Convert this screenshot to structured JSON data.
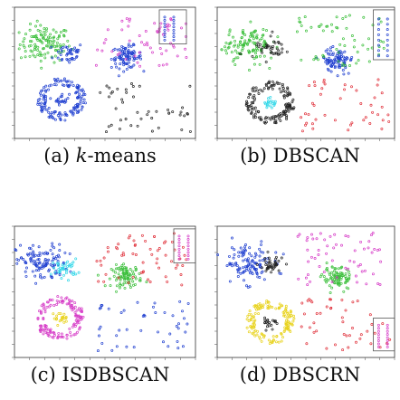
{
  "captions": [
    {
      "tag": "(a)",
      "prefix": " ",
      "emph": "k",
      "rest": "-means"
    },
    {
      "tag": "(b)",
      "prefix": " ",
      "emph": "",
      "rest": "DBSCAN"
    },
    {
      "tag": "(c)",
      "prefix": " ",
      "emph": "",
      "rest": "ISDBSCAN"
    },
    {
      "tag": "(d)",
      "prefix": " ",
      "emph": "",
      "rest": "DBSCRN"
    }
  ],
  "colors": {
    "blue": "#1f3fd0",
    "green": "#3bbf3b",
    "red": "#e0303a",
    "magenta": "#d63cc7",
    "yellow": "#e8d21a",
    "cyan": "#2fd7e8",
    "black": "#222222"
  },
  "chart_data": [
    {
      "type": "scatter",
      "title": "(a) k-means",
      "xlabel": "",
      "ylabel": "",
      "grid": false,
      "clusters": [
        {
          "shape": "blob",
          "cx": 0.17,
          "cy": 0.72,
          "spread": 0.1,
          "n": 120,
          "color": "green"
        },
        {
          "shape": "blob",
          "cx": 0.3,
          "cy": 0.65,
          "spread": 0.06,
          "n": 40,
          "color": "blue"
        },
        {
          "shape": "ring",
          "cx": 0.26,
          "cy": 0.3,
          "r": 0.12,
          "n": 140,
          "color": "blue"
        },
        {
          "shape": "blob",
          "cx": 0.26,
          "cy": 0.3,
          "spread": 0.03,
          "n": 20,
          "color": "blue"
        },
        {
          "shape": "blob",
          "cx": 0.62,
          "cy": 0.62,
          "spread": 0.06,
          "n": 90,
          "color": "blue"
        },
        {
          "shape": "scatter",
          "x": [
            0.45,
            0.95
          ],
          "y": [
            0.55,
            0.95
          ],
          "n": 60,
          "color": "magenta"
        },
        {
          "shape": "scatter",
          "x": [
            0.45,
            0.98
          ],
          "y": [
            0.05,
            0.45
          ],
          "n": 45,
          "color": "black"
        },
        {
          "shape": "box",
          "x": [
            0.8,
            0.95
          ],
          "y": [
            0.72,
            0.98
          ],
          "color": "blue"
        }
      ]
    },
    {
      "type": "scatter",
      "title": "(b) DBSCAN",
      "xlabel": "",
      "ylabel": "",
      "grid": false,
      "clusters": [
        {
          "shape": "blob",
          "cx": 0.17,
          "cy": 0.72,
          "spread": 0.1,
          "n": 120,
          "color": "green"
        },
        {
          "shape": "blob",
          "cx": 0.3,
          "cy": 0.68,
          "spread": 0.06,
          "n": 40,
          "color": "black"
        },
        {
          "shape": "ring",
          "cx": 0.3,
          "cy": 0.27,
          "r": 0.12,
          "n": 140,
          "color": "black"
        },
        {
          "shape": "blob",
          "cx": 0.3,
          "cy": 0.27,
          "spread": 0.03,
          "n": 20,
          "color": "cyan"
        },
        {
          "shape": "blob",
          "cx": 0.68,
          "cy": 0.6,
          "spread": 0.06,
          "n": 90,
          "color": "blue"
        },
        {
          "shape": "scatter",
          "x": [
            0.45,
            0.95
          ],
          "y": [
            0.55,
            0.95
          ],
          "n": 60,
          "color": "green"
        },
        {
          "shape": "scatter",
          "x": [
            0.45,
            0.98
          ],
          "y": [
            0.05,
            0.45
          ],
          "n": 45,
          "color": "red"
        },
        {
          "shape": "box",
          "x": [
            0.88,
            1.0
          ],
          "y": [
            0.6,
            0.98
          ],
          "color": "blue"
        }
      ]
    },
    {
      "type": "scatter",
      "title": "(c) ISDBSCAN",
      "xlabel": "",
      "ylabel": "",
      "grid": false,
      "clusters": [
        {
          "shape": "blob",
          "cx": 0.15,
          "cy": 0.72,
          "spread": 0.1,
          "n": 120,
          "color": "blue"
        },
        {
          "shape": "blob",
          "cx": 0.28,
          "cy": 0.68,
          "spread": 0.05,
          "n": 40,
          "color": "cyan"
        },
        {
          "shape": "ring",
          "cx": 0.25,
          "cy": 0.3,
          "r": 0.12,
          "n": 140,
          "color": "magenta"
        },
        {
          "shape": "blob",
          "cx": 0.25,
          "cy": 0.3,
          "spread": 0.03,
          "n": 20,
          "color": "yellow"
        },
        {
          "shape": "blob",
          "cx": 0.62,
          "cy": 0.62,
          "spread": 0.06,
          "n": 90,
          "color": "green"
        },
        {
          "shape": "scatter",
          "x": [
            0.45,
            0.95
          ],
          "y": [
            0.55,
            0.95
          ],
          "n": 60,
          "color": "red"
        },
        {
          "shape": "scatter",
          "x": [
            0.45,
            0.98
          ],
          "y": [
            0.05,
            0.45
          ],
          "n": 45,
          "color": "blue"
        },
        {
          "shape": "box",
          "x": [
            0.88,
            1.0
          ],
          "y": [
            0.72,
            0.98
          ],
          "color": "magenta"
        }
      ]
    },
    {
      "type": "scatter",
      "title": "(d) DBSCRN",
      "xlabel": "",
      "ylabel": "",
      "grid": false,
      "clusters": [
        {
          "shape": "blob",
          "cx": 0.17,
          "cy": 0.72,
          "spread": 0.1,
          "n": 120,
          "color": "blue"
        },
        {
          "shape": "blob",
          "cx": 0.3,
          "cy": 0.7,
          "spread": 0.05,
          "n": 40,
          "color": "black"
        },
        {
          "shape": "ring",
          "cx": 0.3,
          "cy": 0.27,
          "r": 0.12,
          "n": 140,
          "color": "yellow"
        },
        {
          "shape": "blob",
          "cx": 0.3,
          "cy": 0.27,
          "spread": 0.03,
          "n": 20,
          "color": "black"
        },
        {
          "shape": "blob",
          "cx": 0.68,
          "cy": 0.6,
          "spread": 0.06,
          "n": 90,
          "color": "green"
        },
        {
          "shape": "scatter",
          "x": [
            0.45,
            0.95
          ],
          "y": [
            0.55,
            0.95
          ],
          "n": 60,
          "color": "magenta"
        },
        {
          "shape": "scatter",
          "x": [
            0.45,
            0.98
          ],
          "y": [
            0.05,
            0.45
          ],
          "n": 45,
          "color": "red"
        },
        {
          "shape": "box",
          "x": [
            0.88,
            1.0
          ],
          "y": [
            0.05,
            0.3
          ],
          "color": "magenta"
        }
      ]
    }
  ]
}
